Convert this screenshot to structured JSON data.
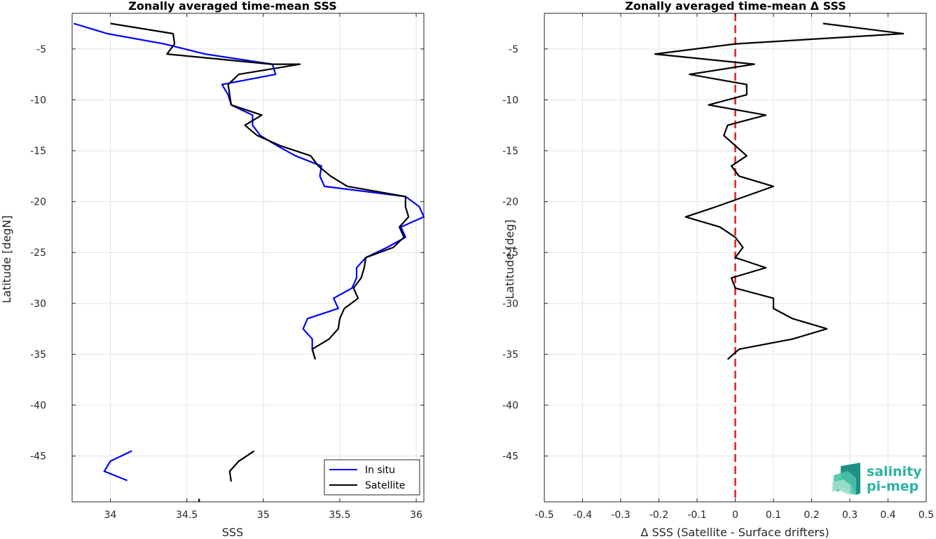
{
  "chart_data": [
    {
      "type": "line",
      "title": "Zonally averaged time-mean SSS",
      "xlabel": "SSS",
      "ylabel": "Latitude [degN]",
      "xlim": [
        33.75,
        36.05
      ],
      "ylim": [
        -49.5,
        -1.5
      ],
      "xticks": [
        34,
        34.5,
        35,
        35.5,
        36
      ],
      "xtick_labels": [
        "34",
        "34.5",
        "35",
        "35.5",
        "36"
      ],
      "yticks": [
        -5,
        -10,
        -15,
        -20,
        -25,
        -30,
        -35,
        -40,
        -45
      ],
      "ytick_labels": [
        "-5",
        "-10",
        "-15",
        "-20",
        "-25",
        "-30",
        "-35",
        "-40",
        "-45"
      ],
      "grid": true,
      "legend_position": "bottom-right",
      "series": [
        {
          "name": "In situ",
          "color": "#0000ff",
          "points": [
            [
              33.76,
              -2.5
            ],
            [
              33.98,
              -3.5
            ],
            [
              34.35,
              -4.5
            ],
            [
              34.62,
              -5.5
            ],
            [
              35.06,
              -6.5
            ],
            [
              35.08,
              -7.5
            ],
            [
              34.73,
              -8.5
            ],
            [
              34.77,
              -9.5
            ],
            [
              34.79,
              -10.5
            ],
            [
              34.93,
              -11.5
            ],
            [
              34.93,
              -12.5
            ],
            [
              34.98,
              -13.5
            ],
            [
              35.09,
              -14.5
            ],
            [
              35.21,
              -15.5
            ],
            [
              35.38,
              -16.5
            ],
            [
              35.37,
              -17.5
            ],
            [
              35.4,
              -18.5
            ],
            [
              35.93,
              -19.5
            ],
            [
              36.02,
              -20.5
            ],
            [
              36.05,
              -21.5
            ],
            [
              35.9,
              -22.5
            ],
            [
              35.93,
              -23.5
            ],
            [
              35.81,
              -24.5
            ],
            [
              35.67,
              -25.5
            ],
            [
              35.61,
              -26.5
            ],
            [
              35.61,
              -27.5
            ],
            [
              35.58,
              -28.5
            ],
            [
              35.46,
              -29.5
            ],
            [
              35.49,
              -30.5
            ],
            [
              35.29,
              -31.5
            ],
            [
              35.26,
              -32.5
            ],
            [
              35.32,
              -33.5
            ],
            [
              35.32,
              -34.5
            ],
            [
              35.34,
              -35.5
            ],
            [
              null,
              null
            ],
            [
              34.14,
              -44.5
            ],
            [
              34.0,
              -45.5
            ],
            [
              33.96,
              -46.5
            ],
            [
              34.11,
              -47.4
            ]
          ]
        },
        {
          "name": "Satellite",
          "color": "#000000",
          "points": [
            [
              34.0,
              -2.5
            ],
            [
              34.41,
              -3.5
            ],
            [
              34.42,
              -4.5
            ],
            [
              34.37,
              -5.5
            ],
            [
              35.05,
              -6.5
            ],
            [
              35.24,
              -6.5
            ],
            [
              34.84,
              -7.5
            ],
            [
              34.77,
              -8.5
            ],
            [
              34.78,
              -9.5
            ],
            [
              34.79,
              -10.5
            ],
            [
              34.99,
              -11.5
            ],
            [
              34.88,
              -12.5
            ],
            [
              34.96,
              -13.5
            ],
            [
              35.11,
              -14.5
            ],
            [
              35.31,
              -15.5
            ],
            [
              35.36,
              -16.5
            ],
            [
              35.44,
              -17.5
            ],
            [
              35.55,
              -18.5
            ],
            [
              35.93,
              -19.5
            ],
            [
              35.93,
              -20.5
            ],
            [
              35.95,
              -21.5
            ],
            [
              35.89,
              -22.5
            ],
            [
              35.92,
              -23.5
            ],
            [
              35.85,
              -24.5
            ],
            [
              35.67,
              -25.5
            ],
            [
              35.66,
              -26.5
            ],
            [
              35.64,
              -27.5
            ],
            [
              35.59,
              -28.5
            ],
            [
              35.62,
              -29.5
            ],
            [
              35.53,
              -30.5
            ],
            [
              35.5,
              -31.5
            ],
            [
              35.49,
              -32.5
            ],
            [
              35.43,
              -33.5
            ],
            [
              35.32,
              -34.5
            ],
            [
              35.34,
              -35.5
            ],
            [
              null,
              null
            ],
            [
              34.94,
              -44.5
            ],
            [
              34.84,
              -45.5
            ],
            [
              34.78,
              -46.5
            ],
            [
              34.79,
              -47.5
            ],
            [
              null,
              null
            ],
            [
              34.58,
              -49.5
            ],
            [
              34.58,
              -49.2
            ]
          ]
        }
      ]
    },
    {
      "type": "line",
      "title": "Zonally averaged time-mean Δ SSS",
      "xlabel": "Δ SSS (Satellite - Surface drifters)",
      "ylabel": "Latitude [deg]",
      "xlim": [
        -0.5,
        0.5
      ],
      "ylim": [
        -49.5,
        -1.5
      ],
      "xticks": [
        -0.5,
        -0.4,
        -0.3,
        -0.2,
        -0.1,
        0,
        0.1,
        0.2,
        0.3,
        0.4,
        0.5
      ],
      "xtick_labels": [
        "-0.5",
        "-0.4",
        "-0.3",
        "-0.2",
        "-0.1",
        "0",
        "0.1",
        "0.2",
        "0.3",
        "0.4",
        "0.5"
      ],
      "yticks": [
        -5,
        -10,
        -15,
        -20,
        -25,
        -30,
        -35,
        -40,
        -45
      ],
      "ytick_labels": [
        "-5",
        "-10",
        "-15",
        "-20",
        "-25",
        "-30",
        "-35",
        "-40",
        "-45"
      ],
      "grid": true,
      "reference_line": {
        "x": 0,
        "color": "#e31a1c",
        "style": "dashed"
      },
      "series": [
        {
          "color": "#000000",
          "points": [
            [
              0.23,
              -2.5
            ],
            [
              0.44,
              -3.5
            ],
            [
              0.0,
              -4.5
            ],
            [
              -0.21,
              -5.5
            ],
            [
              0.05,
              -6.5
            ],
            [
              -0.12,
              -7.5
            ],
            [
              0.03,
              -8.5
            ],
            [
              0.03,
              -9.5
            ],
            [
              -0.07,
              -10.5
            ],
            [
              0.08,
              -11.5
            ],
            [
              -0.02,
              -12.5
            ],
            [
              -0.03,
              -13.5
            ],
            [
              0.0,
              -14.5
            ],
            [
              0.03,
              -15.5
            ],
            [
              -0.01,
              -16.5
            ],
            [
              0.01,
              -17.5
            ],
            [
              0.1,
              -18.5
            ],
            [
              -0.05,
              -20.5
            ],
            [
              -0.13,
              -21.5
            ],
            [
              -0.04,
              -22.5
            ],
            [
              0.0,
              -23.5
            ],
            [
              0.02,
              -24.5
            ],
            [
              0.0,
              -25.5
            ],
            [
              0.08,
              -26.5
            ],
            [
              -0.01,
              -27.5
            ],
            [
              0.0,
              -28.5
            ],
            [
              0.1,
              -29.5
            ],
            [
              0.1,
              -30.5
            ],
            [
              0.15,
              -31.5
            ],
            [
              0.24,
              -32.5
            ],
            [
              0.15,
              -33.5
            ],
            [
              0.01,
              -34.5
            ],
            [
              -0.02,
              -35.5
            ]
          ]
        }
      ]
    }
  ],
  "legend": {
    "items": [
      {
        "label": "In situ",
        "color": "#0000ff"
      },
      {
        "label": "Satellite",
        "color": "#000000"
      }
    ]
  },
  "logo": {
    "line1": "salinity",
    "line2": "pi-mep",
    "colors": [
      "#1f8f85",
      "#48c2a8",
      "#9de0cc"
    ]
  }
}
